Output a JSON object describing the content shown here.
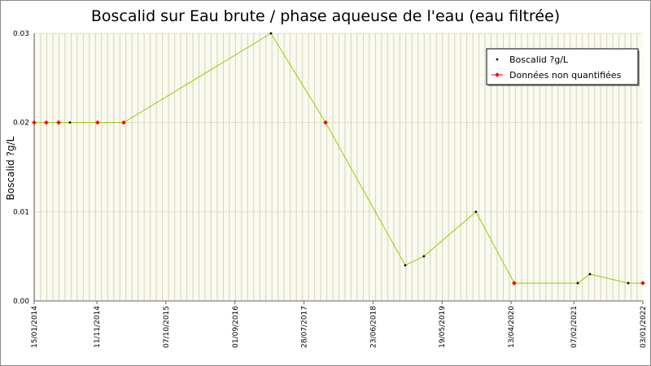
{
  "chart_data": {
    "type": "line",
    "title": "Boscalid sur Eau brute / phase aqueuse de l'eau (eau filtrée)",
    "y_label": "Boscalid ?g/L",
    "x": [
      "15/01/2014",
      "14/03/2014",
      "12/05/2014",
      "05/07/2014",
      "14/11/2014",
      "19/03/2015",
      "20/02/2017",
      "08/11/2017",
      "24/11/2018",
      "21/02/2019",
      "28/10/2019",
      "28/04/2020",
      "26/02/2021",
      "25/04/2021",
      "25/10/2021",
      "03/01/2022"
    ],
    "series": [
      {
        "name": "Boscalid ?g/L",
        "color": "#99cc00",
        "marker_color": "#000000",
        "style": "line",
        "values": [
          0.02,
          0.02,
          0.02,
          0.02,
          0.02,
          0.02,
          0.03,
          0.02,
          0.004,
          0.005,
          0.01,
          0.002,
          0.002,
          0.003,
          0.002,
          0.002
        ]
      },
      {
        "name": "Données non quantifiées",
        "color": "#ff0000",
        "style": "markers",
        "values": [
          0.02,
          0.02,
          0.02,
          null,
          0.02,
          0.02,
          null,
          0.02,
          null,
          null,
          null,
          0.002,
          null,
          null,
          null,
          0.002
        ]
      }
    ],
    "xlim": [
      "15/01/2014",
      "03/01/2022"
    ],
    "xticks": [
      "15/01/2014",
      "11/11/2014",
      "07/10/2015",
      "01/09/2016",
      "28/07/2017",
      "23/06/2018",
      "19/05/2019",
      "13/04/2020",
      "07/02/2021",
      "03/01/2022"
    ],
    "ylim": [
      0,
      0.03
    ],
    "yticks": [
      {
        "value": 0,
        "label": "0.00"
      },
      0.01,
      0.02,
      0.03
    ],
    "grid": true,
    "legend": "top-right"
  }
}
